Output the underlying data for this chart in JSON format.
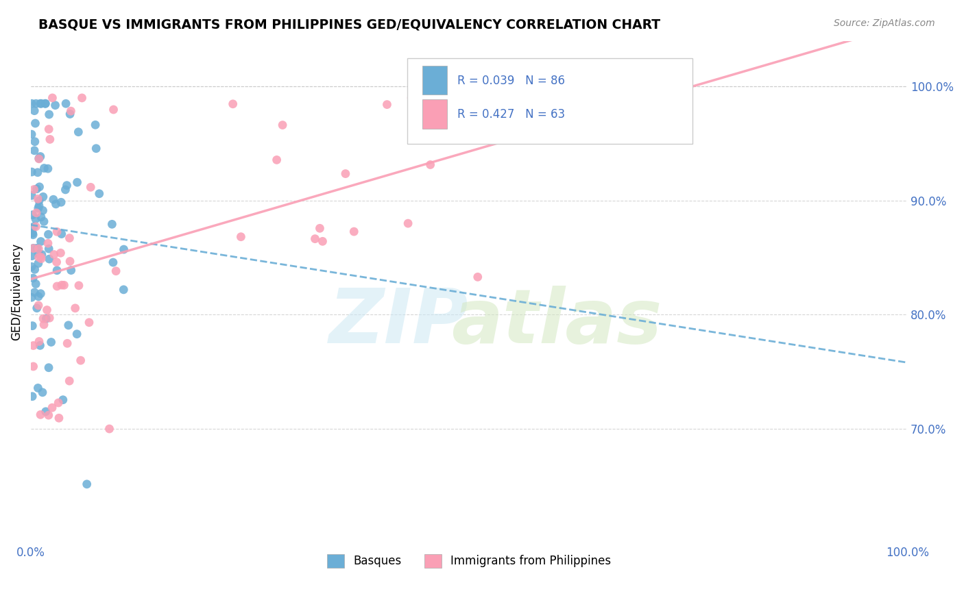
{
  "title": "BASQUE VS IMMIGRANTS FROM PHILIPPINES GED/EQUIVALENCY CORRELATION CHART",
  "source": "Source: ZipAtlas.com",
  "ylabel": "GED/Equivalency",
  "ytick_labels": [
    "70.0%",
    "80.0%",
    "90.0%",
    "100.0%"
  ],
  "ytick_values": [
    0.7,
    0.8,
    0.9,
    1.0
  ],
  "legend_label1": "Basques",
  "legend_label2": "Immigrants from Philippines",
  "r1": 0.039,
  "n1": 86,
  "r2": 0.427,
  "n2": 63,
  "color_blue": "#6baed6",
  "color_pink": "#fa9fb5",
  "xlim": [
    0.0,
    1.0
  ],
  "ylim": [
    0.6,
    1.04
  ]
}
